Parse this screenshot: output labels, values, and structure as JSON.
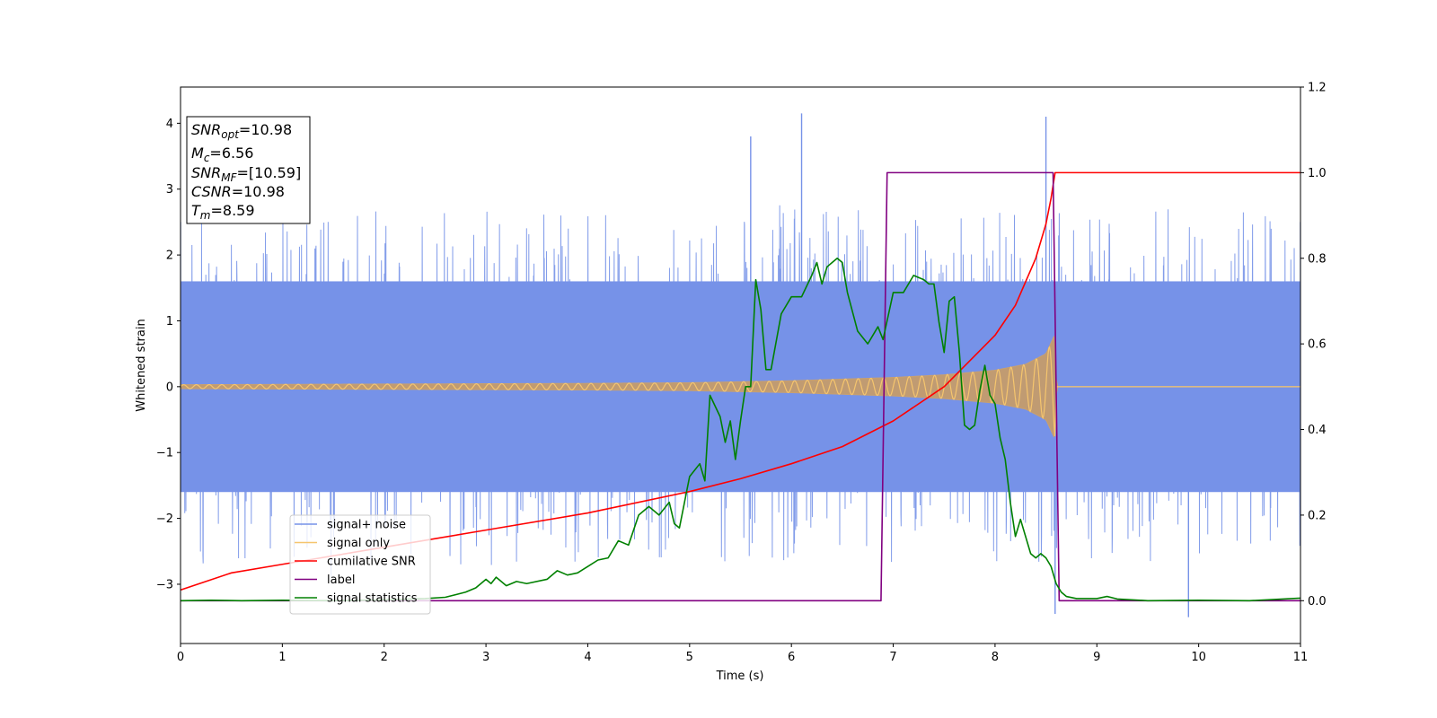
{
  "chart_data": {
    "type": "line",
    "xlabel": "Time (s)",
    "ylabel": "Whitened strain",
    "xlim": [
      0,
      11
    ],
    "ylim": [
      -3.9,
      4.55
    ],
    "y2lim": [
      -0.1,
      1.2
    ],
    "x_ticks": [
      "0",
      "1",
      "2",
      "3",
      "4",
      "5",
      "6",
      "7",
      "8",
      "9",
      "10",
      "11"
    ],
    "y_ticks": [
      "−3",
      "−2",
      "−1",
      "0",
      "1",
      "2",
      "3",
      "4"
    ],
    "y2_ticks": [
      "0.0",
      "0.2",
      "0.4",
      "0.6",
      "0.8",
      "1.0",
      "1.2"
    ],
    "legend_position": "lower-left",
    "grid": false,
    "info_box": {
      "lines": [
        {
          "main": "SNR",
          "sub": "opt",
          "value": "=10.98"
        },
        {
          "main": "M",
          "sub": "c",
          "value": "=6.56"
        },
        {
          "main": "SNR",
          "sub": "MF",
          "value": "=[10.59]"
        },
        {
          "main": "CSNR",
          "sub": "",
          "value": "=10.98"
        },
        {
          "main": "T",
          "sub": "m",
          "value": "=8.59"
        }
      ]
    },
    "series": [
      {
        "name": "signal+ noise",
        "axis": "left",
        "color": "#7692e8",
        "spike_envelope": [
          [
            0,
            2.5
          ],
          [
            5.6,
            3.8
          ],
          [
            6.1,
            4.15
          ],
          [
            8.5,
            4.1
          ],
          [
            8.59,
            -3.45
          ],
          [
            9.9,
            -3.5
          ],
          [
            11,
            2.5
          ]
        ],
        "band_x": [
          0,
          11
        ],
        "band": [
          -1.6,
          1.6
        ]
      },
      {
        "name": "signal only",
        "axis": "left",
        "color": "#f5c56e",
        "x": [
          0,
          1,
          2,
          3,
          4,
          5,
          6,
          7,
          7.5,
          8,
          8.3,
          8.5,
          8.59,
          8.6,
          11
        ],
        "amplitude": [
          0.03,
          0.035,
          0.04,
          0.045,
          0.05,
          0.06,
          0.09,
          0.14,
          0.18,
          0.25,
          0.34,
          0.5,
          0.8,
          0.0,
          0.0
        ]
      },
      {
        "name": "cumilative SNR",
        "axis": "right",
        "color": "#ff0000",
        "x": [
          0,
          0.5,
          1,
          2,
          3,
          4,
          5,
          5.5,
          6,
          6.5,
          7,
          7.5,
          8,
          8.2,
          8.4,
          8.5,
          8.55,
          8.59,
          8.6,
          11
        ],
        "y": [
          0.025,
          0.065,
          0.085,
          0.125,
          0.165,
          0.205,
          0.255,
          0.285,
          0.32,
          0.36,
          0.42,
          0.5,
          0.62,
          0.69,
          0.8,
          0.88,
          0.94,
          1.0,
          1.0,
          1.0
        ]
      },
      {
        "name": "label",
        "axis": "right",
        "color": "#800080",
        "x": [
          0,
          6.88,
          6.94,
          8.57,
          8.63,
          11
        ],
        "y": [
          0,
          0,
          1,
          1,
          0,
          0
        ]
      },
      {
        "name": "signal statistics",
        "axis": "right",
        "color": "#008000",
        "x": [
          0,
          0.3,
          0.6,
          1,
          1.5,
          2,
          2.4,
          2.6,
          2.8,
          2.9,
          3.0,
          3.05,
          3.1,
          3.2,
          3.3,
          3.4,
          3.6,
          3.7,
          3.8,
          3.9,
          4.0,
          4.1,
          4.2,
          4.3,
          4.4,
          4.5,
          4.6,
          4.7,
          4.8,
          4.85,
          4.9,
          5.0,
          5.1,
          5.15,
          5.2,
          5.3,
          5.35,
          5.4,
          5.45,
          5.5,
          5.55,
          5.6,
          5.65,
          5.7,
          5.75,
          5.8,
          5.9,
          6.0,
          6.1,
          6.2,
          6.25,
          6.3,
          6.35,
          6.4,
          6.45,
          6.5,
          6.55,
          6.65,
          6.75,
          6.85,
          6.9,
          7.0,
          7.1,
          7.2,
          7.3,
          7.35,
          7.4,
          7.45,
          7.5,
          7.55,
          7.6,
          7.65,
          7.7,
          7.75,
          7.8,
          7.85,
          7.9,
          7.95,
          8.0,
          8.05,
          8.1,
          8.15,
          8.2,
          8.25,
          8.3,
          8.35,
          8.4,
          8.45,
          8.5,
          8.55,
          8.6,
          8.65,
          8.7,
          8.8,
          9.0,
          9.1,
          9.2,
          9.5,
          10,
          10.5,
          11
        ],
        "y": [
          0.0,
          0.001,
          0.0,
          0.001,
          0.0,
          0.002,
          0.005,
          0.008,
          0.02,
          0.03,
          0.05,
          0.04,
          0.055,
          0.035,
          0.045,
          0.04,
          0.05,
          0.07,
          0.06,
          0.065,
          0.08,
          0.095,
          0.1,
          0.14,
          0.13,
          0.2,
          0.22,
          0.2,
          0.23,
          0.18,
          0.17,
          0.29,
          0.32,
          0.28,
          0.48,
          0.43,
          0.37,
          0.42,
          0.33,
          0.42,
          0.5,
          0.5,
          0.75,
          0.68,
          0.54,
          0.54,
          0.67,
          0.71,
          0.71,
          0.76,
          0.79,
          0.74,
          0.78,
          0.79,
          0.8,
          0.79,
          0.72,
          0.63,
          0.6,
          0.64,
          0.61,
          0.72,
          0.72,
          0.76,
          0.75,
          0.74,
          0.74,
          0.65,
          0.58,
          0.7,
          0.71,
          0.58,
          0.41,
          0.4,
          0.41,
          0.49,
          0.55,
          0.48,
          0.46,
          0.38,
          0.33,
          0.23,
          0.15,
          0.19,
          0.15,
          0.11,
          0.1,
          0.11,
          0.1,
          0.08,
          0.04,
          0.02,
          0.01,
          0.005,
          0.005,
          0.01,
          0.004,
          0.0,
          0.001,
          0.0,
          0.006
        ]
      }
    ]
  }
}
